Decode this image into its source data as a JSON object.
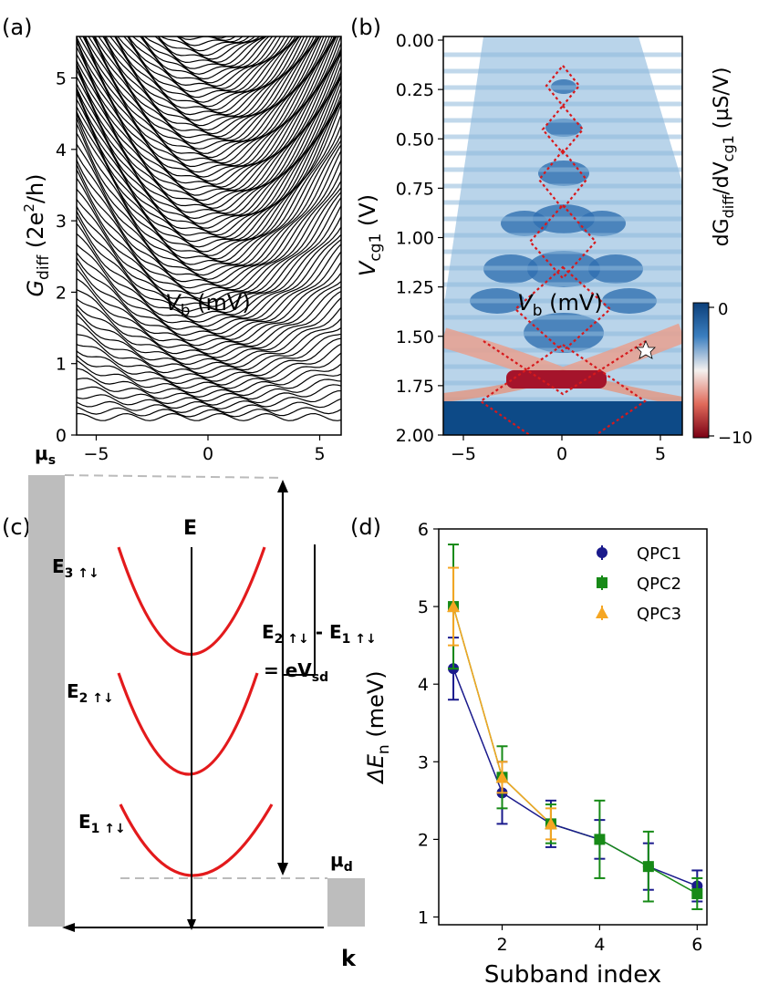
{
  "panel_labels": {
    "a": "(a)",
    "b": "(b)",
    "c": "(c)",
    "d": "(d)"
  },
  "panel_a": {
    "ylabel_main": "G",
    "ylabel_sub": "diff",
    "ylabel_unit_prefix": "(2e",
    "ylabel_unit_sup": "2",
    "ylabel_unit_suffix": "/h)",
    "xlabel_main": "V",
    "xlabel_sub": "b",
    "xlabel_unit": "(mV)",
    "xticks": [
      "−5",
      "0",
      "5"
    ],
    "yticks": [
      "0",
      "1",
      "2",
      "3",
      "4",
      "5"
    ]
  },
  "panel_b": {
    "ylabel_main": "V",
    "ylabel_sub": "cg1",
    "ylabel_unit": "(V)",
    "xlabel_main": "V",
    "xlabel_sub": "b",
    "xlabel_unit": "(mV)",
    "xticks": [
      "−5",
      "0",
      "5"
    ],
    "yticks": [
      "0.00",
      "0.25",
      "0.50",
      "0.75",
      "1.00",
      "1.25",
      "1.50",
      "1.75",
      "2.00"
    ],
    "colorbar_ticks": [
      "0",
      "−10"
    ],
    "colorbar_label": "dG_diff/dV_cg1 (µS/V)",
    "colorbar_label_parts": {
      "d1": "dG",
      "sub1": "diff",
      "slash": "/dV",
      "sub2": "cg1",
      "unit": "(µS/V)"
    }
  },
  "panel_c": {
    "axis_e": "E",
    "axis_k": "k",
    "labels": {
      "e3": "E",
      "e3_sub": "3 ↑↓",
      "e2": "E",
      "e2_sub": "2 ↑↓",
      "e1": "E",
      "e1_sub": "1 ↑↓",
      "mus": "μ",
      "mus_sub": "s",
      "mud": "μ",
      "mud_sub": "d",
      "eq1a": "E",
      "eq1a_sub": "2 ↑↓",
      "eq1b": " - E",
      "eq1b_sub": "1 ↑↓",
      "eq2": "= eV",
      "eq2_sub": "sd"
    }
  },
  "chart_data": {
    "type": "line",
    "title": "",
    "xlabel": "Subband index",
    "ylabel": "ΔE_n (meV)",
    "ylabel_parts": {
      "delta": "ΔE",
      "sub": "n",
      "unit": "(meV)"
    },
    "xlim": [
      0.7,
      6.2
    ],
    "ylim": [
      0.9,
      6.0
    ],
    "xticks": [
      2,
      4,
      6
    ],
    "yticks": [
      1,
      2,
      3,
      4,
      5,
      6
    ],
    "legend_position": "top-right",
    "series": [
      {
        "name": "QPC1",
        "color": "#1a1a8c",
        "marker": "circle",
        "x": [
          1,
          2,
          3
        ],
        "y": [
          4.2,
          2.6,
          2.2
        ],
        "err": [
          0.4,
          0.4,
          0.3
        ]
      },
      {
        "name": "QPC1",
        "color": "#1a1a8c",
        "marker": "circle",
        "legend": false,
        "x": [
          4,
          5,
          6
        ],
        "y": [
          2.0,
          1.65,
          1.4
        ],
        "err": [
          0.25,
          0.3,
          0.2
        ]
      },
      {
        "name": "QPC2",
        "color": "#178a17",
        "marker": "square",
        "x": [
          1,
          2,
          3,
          4,
          5,
          6
        ],
        "y": [
          5.0,
          2.8,
          2.2,
          2.0,
          1.65,
          1.3
        ],
        "err": [
          0.8,
          0.4,
          0.25,
          0.5,
          0.45,
          0.2
        ]
      },
      {
        "name": "QPC3",
        "color": "#f5a623",
        "marker": "triangle",
        "x": [
          1,
          2,
          3
        ],
        "y": [
          5.0,
          2.8,
          2.2
        ],
        "err": [
          0.5,
          0.2,
          0.2
        ]
      }
    ]
  }
}
